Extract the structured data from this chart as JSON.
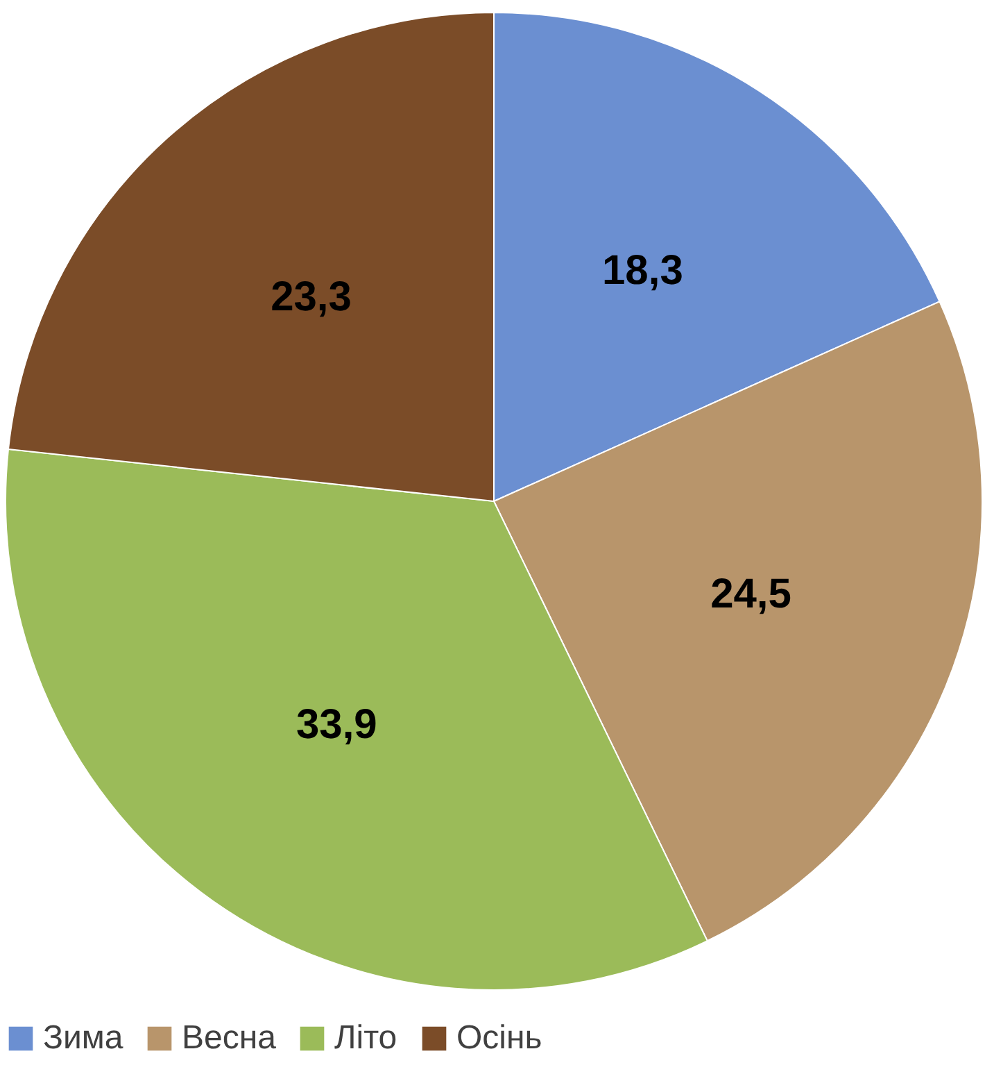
{
  "chart_data": {
    "type": "pie",
    "categories": [
      "Зима",
      "Весна",
      "Літо",
      "Осінь"
    ],
    "values": [
      18.3,
      24.5,
      33.9,
      23.3
    ],
    "value_labels": [
      "18,3",
      "24,5",
      "33,9",
      "23,3"
    ],
    "colors": [
      "#6b8fd1",
      "#b8956b",
      "#9bbb59",
      "#7b4c28"
    ],
    "legend": "bottom"
  }
}
